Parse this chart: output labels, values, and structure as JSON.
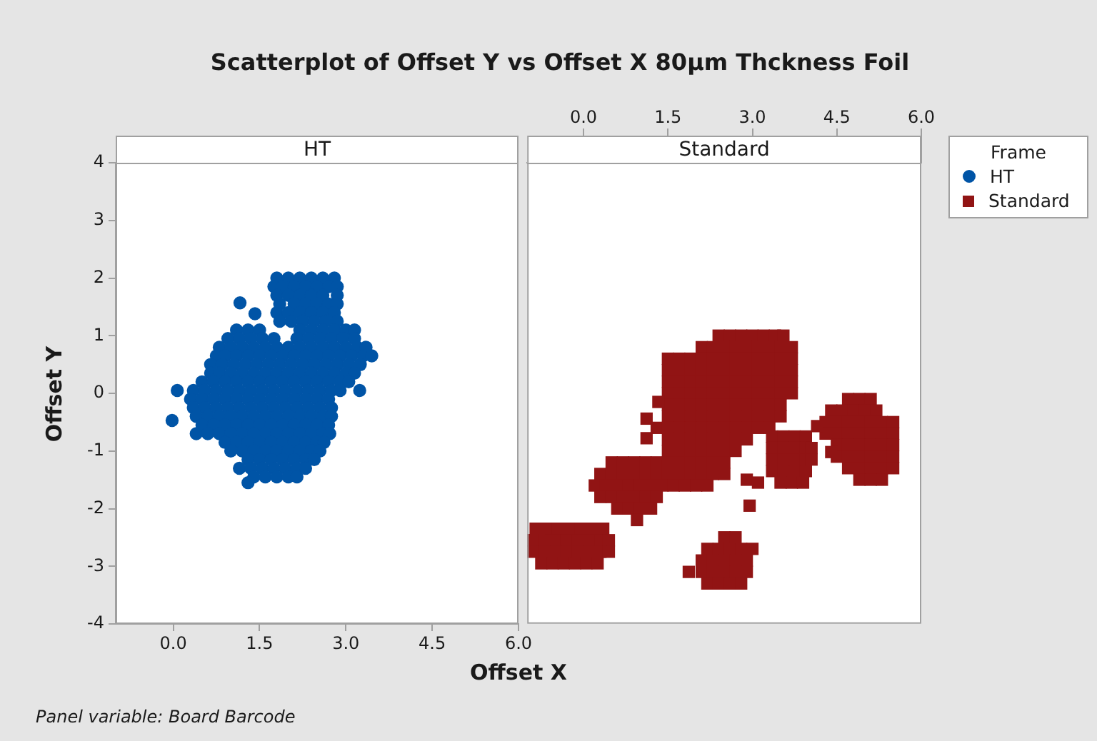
{
  "chart_data": [
    {
      "type": "scatter",
      "title": "Scatterplot of Offset Y vs Offset X 80µm Thckness Foil",
      "subtitle": "HT",
      "xlabel": "Offset X",
      "ylabel": "Offset Y",
      "annotations": [
        "Panel variable: Board Barcode"
      ],
      "xlim": [
        -1,
        6
      ],
      "xticks": [
        {
          "value": 0,
          "label": "0.0"
        },
        {
          "value": 1.5,
          "label": "1.5"
        },
        {
          "value": 3,
          "label": "3.0"
        },
        {
          "value": 4.5,
          "label": "4.5"
        },
        {
          "value": 6,
          "label": "6.0"
        }
      ],
      "ylim": [
        -4,
        4
      ],
      "yticks": [
        -4,
        -3,
        -2,
        -1,
        0,
        1,
        2,
        3,
        4
      ],
      "marker": "circle",
      "legend": "right",
      "legend_title": "Frame",
      "series": [
        {
          "name": "HT",
          "color": "#0054a6",
          "x": [
            1.8,
            2.0,
            2.2,
            2.4,
            2.6,
            2.8,
            1.75,
            1.9,
            2.1,
            2.3,
            2.5,
            2.7,
            2.85,
            1.8,
            2.0,
            2.2,
            2.4,
            2.6,
            2.85,
            1.85,
            2.1,
            2.3,
            2.5,
            2.7,
            2.85,
            1.16,
            1.8,
            2.0,
            2.2,
            2.4,
            2.6,
            2.8,
            1.42,
            1.85,
            2.05,
            2.25,
            2.45,
            2.65,
            2.85,
            1.1,
            1.3,
            1.5,
            2.2,
            2.4,
            2.6,
            2.8,
            3.0,
            3.15,
            0.95,
            1.15,
            1.35,
            1.55,
            1.75,
            2.15,
            2.35,
            2.55,
            2.75,
            2.95,
            3.15,
            0.8,
            1.0,
            1.2,
            1.4,
            1.6,
            1.8,
            2.0,
            2.2,
            2.4,
            2.6,
            2.8,
            3.0,
            3.2,
            3.35,
            0.75,
            0.9,
            1.1,
            1.3,
            1.5,
            1.7,
            1.9,
            2.1,
            2.3,
            2.5,
            2.7,
            2.9,
            3.1,
            3.3,
            3.45,
            0.65,
            0.85,
            1.05,
            1.25,
            1.45,
            1.65,
            1.85,
            2.05,
            2.25,
            2.45,
            2.65,
            2.85,
            3.05,
            3.25,
            0.65,
            0.8,
            1.0,
            1.2,
            1.4,
            1.6,
            1.8,
            2.0,
            2.2,
            2.4,
            2.6,
            2.8,
            3.0,
            3.15,
            0.5,
            0.7,
            0.9,
            1.1,
            1.3,
            1.5,
            1.7,
            1.9,
            2.1,
            2.3,
            2.5,
            2.7,
            2.9,
            3.05,
            0.07,
            0.35,
            0.55,
            0.75,
            0.95,
            1.15,
            1.35,
            1.55,
            1.75,
            1.95,
            2.15,
            2.35,
            2.55,
            2.75,
            2.9,
            3.24,
            0.3,
            0.5,
            0.7,
            0.9,
            1.1,
            1.3,
            1.5,
            1.7,
            1.9,
            2.1,
            2.3,
            2.5,
            2.7,
            0.35,
            0.55,
            0.75,
            0.95,
            1.15,
            1.35,
            1.55,
            1.75,
            1.95,
            2.15,
            2.35,
            2.55,
            2.75,
            0.4,
            0.6,
            0.8,
            1.0,
            1.2,
            1.4,
            1.6,
            1.8,
            2.0,
            2.2,
            2.4,
            2.6,
            2.75,
            -0.02,
            0.5,
            0.7,
            0.9,
            1.1,
            1.3,
            1.5,
            1.7,
            1.9,
            2.1,
            2.3,
            2.5,
            2.7,
            0.4,
            0.6,
            0.8,
            1.0,
            1.2,
            1.4,
            1.6,
            1.8,
            2.0,
            2.2,
            2.4,
            2.6,
            2.72,
            0.9,
            1.1,
            1.3,
            1.5,
            1.7,
            1.9,
            2.1,
            2.3,
            2.5,
            2.62,
            1.0,
            1.2,
            1.4,
            1.6,
            1.8,
            2.0,
            2.2,
            2.4,
            2.55,
            1.3,
            1.5,
            1.7,
            1.9,
            2.1,
            2.3,
            2.45,
            1.15,
            1.35,
            1.55,
            1.75,
            1.95,
            2.15,
            2.3,
            1.4,
            1.6,
            1.8,
            2.0,
            2.15,
            1.3
          ],
          "values": [
            2,
            2,
            2,
            2,
            2,
            2,
            1.85,
            1.85,
            1.85,
            1.85,
            1.85,
            1.85,
            1.85,
            1.7,
            1.7,
            1.7,
            1.7,
            1.7,
            1.7,
            1.55,
            1.55,
            1.55,
            1.55,
            1.55,
            1.55,
            1.57,
            1.4,
            1.4,
            1.4,
            1.4,
            1.4,
            1.4,
            1.38,
            1.25,
            1.25,
            1.25,
            1.25,
            1.25,
            1.25,
            1.1,
            1.1,
            1.1,
            1.1,
            1.1,
            1.1,
            1.1,
            1.1,
            1.1,
            0.95,
            0.95,
            0.95,
            0.95,
            0.95,
            0.95,
            0.95,
            0.95,
            0.95,
            0.95,
            0.95,
            0.8,
            0.8,
            0.8,
            0.8,
            0.8,
            0.8,
            0.8,
            0.8,
            0.8,
            0.8,
            0.8,
            0.8,
            0.8,
            0.8,
            0.65,
            0.65,
            0.65,
            0.65,
            0.65,
            0.65,
            0.65,
            0.65,
            0.65,
            0.65,
            0.65,
            0.65,
            0.65,
            0.65,
            0.65,
            0.5,
            0.5,
            0.5,
            0.5,
            0.5,
            0.5,
            0.5,
            0.5,
            0.5,
            0.5,
            0.5,
            0.5,
            0.5,
            0.5,
            0.35,
            0.35,
            0.35,
            0.35,
            0.35,
            0.35,
            0.35,
            0.35,
            0.35,
            0.35,
            0.35,
            0.35,
            0.35,
            0.35,
            0.2,
            0.2,
            0.2,
            0.2,
            0.2,
            0.2,
            0.2,
            0.2,
            0.2,
            0.2,
            0.2,
            0.2,
            0.2,
            0.2,
            0.05,
            0.05,
            0.05,
            0.05,
            0.05,
            0.05,
            0.05,
            0.05,
            0.05,
            0.05,
            0.05,
            0.05,
            0.05,
            0.05,
            0.05,
            0.05,
            -0.1,
            -0.1,
            -0.1,
            -0.1,
            -0.1,
            -0.1,
            -0.1,
            -0.1,
            -0.1,
            -0.1,
            -0.1,
            -0.1,
            -0.1,
            -0.25,
            -0.25,
            -0.25,
            -0.25,
            -0.25,
            -0.25,
            -0.25,
            -0.25,
            -0.25,
            -0.25,
            -0.25,
            -0.25,
            -0.25,
            -0.4,
            -0.4,
            -0.4,
            -0.4,
            -0.4,
            -0.4,
            -0.4,
            -0.4,
            -0.4,
            -0.4,
            -0.4,
            -0.4,
            -0.4,
            -0.47,
            -0.55,
            -0.55,
            -0.55,
            -0.55,
            -0.55,
            -0.55,
            -0.55,
            -0.55,
            -0.55,
            -0.55,
            -0.55,
            -0.55,
            -0.7,
            -0.7,
            -0.7,
            -0.7,
            -0.7,
            -0.7,
            -0.7,
            -0.7,
            -0.7,
            -0.7,
            -0.7,
            -0.7,
            -0.7,
            -0.85,
            -0.85,
            -0.85,
            -0.85,
            -0.85,
            -0.85,
            -0.85,
            -0.85,
            -0.85,
            -0.85,
            -1,
            -1,
            -1,
            -1,
            -1,
            -1,
            -1,
            -1,
            -1,
            -1.15,
            -1.15,
            -1.15,
            -1.15,
            -1.15,
            -1.15,
            -1.15,
            -1.3,
            -1.3,
            -1.3,
            -1.3,
            -1.3,
            -1.3,
            -1.3,
            -1.45,
            -1.45,
            -1.45,
            -1.45,
            -1.45,
            -1.55
          ]
        }
      ]
    },
    {
      "type": "scatter",
      "subtitle": "Standard",
      "xlim": [
        -1,
        6
      ],
      "xticks": [
        {
          "value": 0,
          "label": "0.0"
        },
        {
          "value": 1.5,
          "label": "1.5"
        },
        {
          "value": 3,
          "label": "3.0"
        },
        {
          "value": 4.5,
          "label": "4.5"
        },
        {
          "value": 6,
          "label": "6.0"
        }
      ],
      "ylim": [
        -4,
        4
      ],
      "tick_labels": "x",
      "marker": "square",
      "legend": "right",
      "series": [
        {
          "name": "Standard",
          "color": "#911414",
          "x": [
            -0.85,
            -0.65,
            -0.45,
            -0.25,
            -0.05,
            0.15,
            0.35,
            -0.9,
            -0.7,
            -0.5,
            -0.3,
            -0.1,
            0.1,
            0.3,
            0.45,
            -0.9,
            -0.7,
            -0.5,
            -0.3,
            -0.1,
            0.1,
            0.3,
            0.45,
            -0.75,
            -0.55,
            -0.35,
            -0.15,
            0.05,
            0.25,
            2.4,
            2.6,
            2.8,
            3,
            3.2,
            3.4,
            3.55,
            2.1,
            2.3,
            2.5,
            2.7,
            2.9,
            3.1,
            3.3,
            3.5,
            3.7,
            1.5,
            1.7,
            1.9,
            2.1,
            2.3,
            2.5,
            2.7,
            2.9,
            3.1,
            3.3,
            3.5,
            3.7,
            1.5,
            1.7,
            1.9,
            2.1,
            2.3,
            2.5,
            2.7,
            2.9,
            3.1,
            3.3,
            3.5,
            3.7,
            1.5,
            1.7,
            1.9,
            2.1,
            2.3,
            2.5,
            2.7,
            2.9,
            3.1,
            3.3,
            3.5,
            3.7,
            1.5,
            1.7,
            1.9,
            2.1,
            2.3,
            2.5,
            2.7,
            2.9,
            3.1,
            3.3,
            3.5,
            3.7,
            1.5,
            1.7,
            1.9,
            2.1,
            2.3,
            2.5,
            2.7,
            2.9,
            3.1,
            3.3,
            3.5,
            1.5,
            1.7,
            1.9,
            2.1,
            2.3,
            2.5,
            2.7,
            2.9,
            3.1,
            3.3,
            3.5,
            1.33,
            1.12,
            1.3,
            1.5,
            1.7,
            1.9,
            2.1,
            2.3,
            2.5,
            2.7,
            2.9,
            3.1,
            3.3,
            1.5,
            1.7,
            1.9,
            2.1,
            2.3,
            2.5,
            2.7,
            2.9,
            1.12,
            1.5,
            1.7,
            1.9,
            2.1,
            2.3,
            2.5,
            2.7,
            0.5,
            0.7,
            0.9,
            1.1,
            1.3,
            1.5,
            1.7,
            1.9,
            2.1,
            2.3,
            2.5,
            0.3,
            0.5,
            0.7,
            0.9,
            1.1,
            1.3,
            1.5,
            1.7,
            1.9,
            2.1,
            2.3,
            2.5,
            0.2,
            0.4,
            0.6,
            0.8,
            1,
            1.2,
            1.4,
            1.6,
            1.8,
            2,
            2.2,
            0.3,
            0.5,
            0.7,
            0.9,
            1.1,
            1.3,
            0.6,
            0.8,
            1,
            1.2,
            0.95,
            3.35,
            3.55,
            3.75,
            3.95,
            3.35,
            3.55,
            3.75,
            3.95,
            4.05,
            3.35,
            3.55,
            3.75,
            3.95,
            4.05,
            3.35,
            3.55,
            3.75,
            3.95,
            3.5,
            3.7,
            3.9,
            2.9,
            3.1,
            2.95,
            4.7,
            4.9,
            5.1,
            4.4,
            4.6,
            4.8,
            5,
            5.2,
            4.3,
            4.5,
            4.7,
            4.9,
            5.1,
            5.3,
            5.5,
            4.3,
            4.5,
            4.7,
            4.9,
            5.1,
            5.3,
            5.5,
            4.5,
            4.7,
            4.9,
            5.1,
            5.3,
            5.5,
            4.5,
            4.7,
            4.9,
            5.1,
            5.3,
            5.5,
            4.7,
            4.9,
            5.1,
            5.3,
            5.5,
            4.9,
            5.1,
            5.3,
            4.15,
            4.4,
            2.5,
            2.7,
            2.2,
            2.4,
            2.6,
            2.8,
            3,
            2.1,
            2.3,
            2.5,
            2.7,
            2.9,
            2.1,
            2.3,
            2.5,
            2.7,
            2.9,
            2.2,
            2.4,
            2.6,
            2.8,
            1.87
          ],
          "values": [
            -2.35,
            -2.35,
            -2.35,
            -2.35,
            -2.35,
            -2.35,
            -2.35,
            -2.55,
            -2.55,
            -2.55,
            -2.55,
            -2.55,
            -2.55,
            -2.55,
            -2.55,
            -2.75,
            -2.75,
            -2.75,
            -2.75,
            -2.75,
            -2.75,
            -2.75,
            -2.75,
            -2.95,
            -2.95,
            -2.95,
            -2.95,
            -2.95,
            -2.95,
            1,
            1,
            1,
            1,
            1,
            1,
            1,
            0.8,
            0.8,
            0.8,
            0.8,
            0.8,
            0.8,
            0.8,
            0.8,
            0.8,
            0.6,
            0.6,
            0.6,
            0.6,
            0.6,
            0.6,
            0.6,
            0.6,
            0.6,
            0.6,
            0.6,
            0.6,
            0.4,
            0.4,
            0.4,
            0.4,
            0.4,
            0.4,
            0.4,
            0.4,
            0.4,
            0.4,
            0.4,
            0.4,
            0.2,
            0.2,
            0.2,
            0.2,
            0.2,
            0.2,
            0.2,
            0.2,
            0.2,
            0.2,
            0.2,
            0.2,
            0,
            0,
            0,
            0,
            0,
            0,
            0,
            0,
            0,
            0,
            0,
            0,
            -0.2,
            -0.2,
            -0.2,
            -0.2,
            -0.2,
            -0.2,
            -0.2,
            -0.2,
            -0.2,
            -0.2,
            -0.2,
            -0.4,
            -0.4,
            -0.4,
            -0.4,
            -0.4,
            -0.4,
            -0.4,
            -0.4,
            -0.4,
            -0.4,
            -0.4,
            -0.15,
            -0.44,
            -0.6,
            -0.6,
            -0.6,
            -0.6,
            -0.6,
            -0.6,
            -0.6,
            -0.6,
            -0.6,
            -0.6,
            -0.6,
            -0.8,
            -0.8,
            -0.8,
            -0.8,
            -0.8,
            -0.8,
            -0.8,
            -0.8,
            -0.78,
            -1,
            -1,
            -1,
            -1,
            -1,
            -1,
            -1,
            -1.2,
            -1.2,
            -1.2,
            -1.2,
            -1.2,
            -1.2,
            -1.2,
            -1.2,
            -1.2,
            -1.2,
            -1.2,
            -1.4,
            -1.4,
            -1.4,
            -1.4,
            -1.4,
            -1.4,
            -1.4,
            -1.4,
            -1.4,
            -1.4,
            -1.4,
            -1.4,
            -1.6,
            -1.6,
            -1.6,
            -1.6,
            -1.6,
            -1.6,
            -1.6,
            -1.6,
            -1.6,
            -1.6,
            -1.6,
            -1.8,
            -1.8,
            -1.8,
            -1.8,
            -1.8,
            -1.8,
            -2,
            -2,
            -2,
            -2,
            -2.2,
            -0.75,
            -0.75,
            -0.75,
            -0.75,
            -0.95,
            -0.95,
            -0.95,
            -0.95,
            -0.95,
            -1.15,
            -1.15,
            -1.15,
            -1.15,
            -1.15,
            -1.35,
            -1.35,
            -1.35,
            -1.35,
            -1.55,
            -1.55,
            -1.55,
            -1.5,
            -1.55,
            -1.95,
            -0.1,
            -0.1,
            -0.1,
            -0.3,
            -0.3,
            -0.3,
            -0.3,
            -0.3,
            -0.5,
            -0.5,
            -0.5,
            -0.5,
            -0.5,
            -0.5,
            -0.5,
            -0.7,
            -0.7,
            -0.7,
            -0.7,
            -0.7,
            -0.7,
            -0.7,
            -0.9,
            -0.9,
            -0.9,
            -0.9,
            -0.9,
            -0.9,
            -1.1,
            -1.1,
            -1.1,
            -1.1,
            -1.1,
            -1.1,
            -1.3,
            -1.3,
            -1.3,
            -1.3,
            -1.3,
            -1.5,
            -1.5,
            -1.5,
            -0.57,
            -1.02,
            -2.5,
            -2.5,
            -2.7,
            -2.7,
            -2.7,
            -2.7,
            -2.7,
            -2.9,
            -2.9,
            -2.9,
            -2.9,
            -2.9,
            -3.1,
            -3.1,
            -3.1,
            -3.1,
            -3.1,
            -3.3,
            -3.3,
            -3.3,
            -3.3,
            -3.1
          ]
        }
      ]
    }
  ]
}
